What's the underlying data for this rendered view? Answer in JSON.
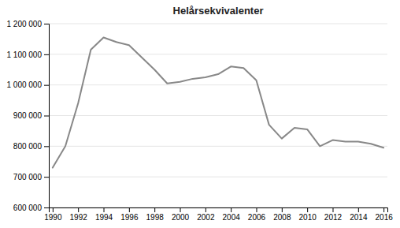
{
  "chart_data": {
    "type": "line",
    "title": "Helårsekvivalenter",
    "x": [
      1990,
      1991,
      1992,
      1993,
      1994,
      1995,
      1996,
      1997,
      1998,
      1999,
      2000,
      2001,
      2002,
      2003,
      2004,
      2005,
      2006,
      2007,
      2008,
      2009,
      2010,
      2011,
      2012,
      2013,
      2014,
      2015,
      2016
    ],
    "values": [
      730000,
      800000,
      940000,
      1115000,
      1155000,
      1140000,
      1130000,
      1090000,
      1050000,
      1005000,
      1010000,
      1020000,
      1025000,
      1035000,
      1060000,
      1055000,
      1015000,
      870000,
      825000,
      860000,
      855000,
      800000,
      820000,
      815000,
      815000,
      808000,
      795000
    ],
    "color": "#888888",
    "xlim": [
      1989.7,
      2016.3
    ],
    "xticks": [
      1990,
      1992,
      1994,
      1996,
      1998,
      2000,
      2002,
      2004,
      2006,
      2008,
      2010,
      2012,
      2014,
      2016
    ],
    "ylim": [
      600000,
      1200000
    ],
    "yticks": [
      {
        "value": 600000,
        "label": "600 000"
      },
      {
        "value": 700000,
        "label": "700 000"
      },
      {
        "value": 800000,
        "label": "800 000"
      },
      {
        "value": 900000,
        "label": "900 000"
      },
      {
        "value": 1000000,
        "label": "1 000 000"
      },
      {
        "value": 1100000,
        "label": "1 100 000"
      },
      {
        "value": 1200000,
        "label": "1 200 000"
      }
    ],
    "grid": true
  }
}
